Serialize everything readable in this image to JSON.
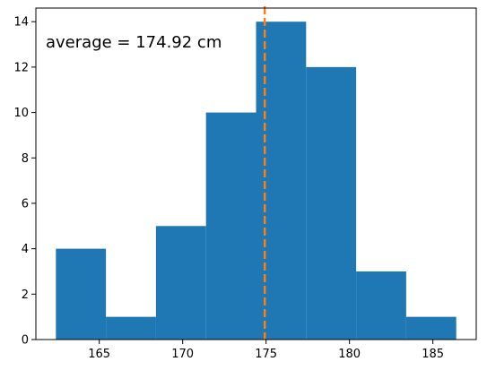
{
  "chart_data": {
    "type": "bar",
    "title": "",
    "xlabel": "",
    "ylabel": "",
    "bins": [
      {
        "start": 162.4,
        "end": 165.4,
        "count": 4
      },
      {
        "start": 165.4,
        "end": 168.4,
        "count": 1
      },
      {
        "start": 168.4,
        "end": 171.4,
        "count": 5
      },
      {
        "start": 171.4,
        "end": 174.4,
        "count": 10
      },
      {
        "start": 174.4,
        "end": 177.4,
        "count": 14
      },
      {
        "start": 177.4,
        "end": 180.4,
        "count": 12
      },
      {
        "start": 180.4,
        "end": 183.4,
        "count": 3
      },
      {
        "start": 183.4,
        "end": 186.4,
        "count": 1
      }
    ],
    "xlim": [
      161.2,
      187.6
    ],
    "ylim": [
      0,
      14.6
    ],
    "xticks": [
      165,
      170,
      175,
      180,
      185
    ],
    "yticks": [
      0,
      2,
      4,
      6,
      8,
      10,
      12,
      14
    ],
    "mean_line": {
      "x": 174.92,
      "style": "dashed"
    },
    "annotation": "average = 174.92 cm",
    "grid": false,
    "legend": "none",
    "colors": {
      "bars": "#1f77b4",
      "mean_line": "#ff7f0e",
      "axes": "#000000"
    }
  }
}
